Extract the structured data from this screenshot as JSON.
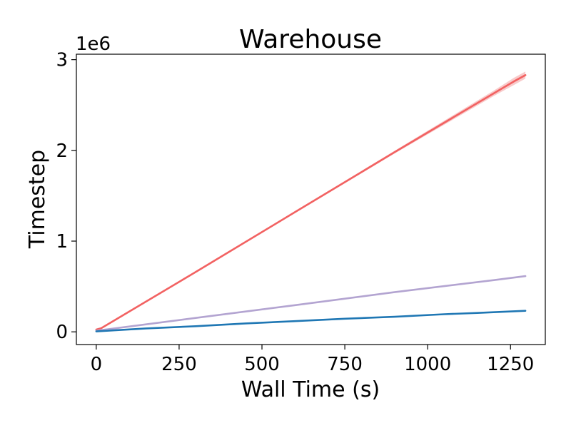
{
  "chart_data": {
    "type": "line",
    "title": "Warehouse",
    "xlabel": "Wall Time (s)",
    "ylabel": "Timestep",
    "offset_label": "1e6",
    "xlim": [
      -60,
      1355
    ],
    "ylim": [
      -0.14,
      3.06
    ],
    "xticks": [
      0,
      250,
      500,
      750,
      1000,
      1250
    ],
    "yticks": [
      0,
      1,
      2,
      3
    ],
    "grid": false,
    "legend": "none",
    "series": [
      {
        "color": "#f26262",
        "band_color": "#f4a8a8",
        "x": [
          0,
          15,
          300,
          600,
          900,
          1200,
          1260,
          1295
        ],
        "y": [
          0.025,
          0.04,
          0.66,
          1.32,
          1.98,
          2.63,
          2.76,
          2.83
        ],
        "band": [
          0.01,
          0.01,
          0.01,
          0.01,
          0.015,
          0.03,
          0.04,
          0.04
        ]
      },
      {
        "color": "#b3a4d1",
        "x": [
          0,
          300,
          600,
          900,
          1200,
          1295
        ],
        "y": [
          0.012,
          0.153,
          0.294,
          0.437,
          0.57,
          0.614
        ]
      },
      {
        "color": "#1f77b4",
        "x": [
          0,
          150,
          300,
          450,
          600,
          750,
          900,
          1050,
          1150,
          1295
        ],
        "y": [
          0.005,
          0.038,
          0.062,
          0.093,
          0.118,
          0.145,
          0.166,
          0.194,
          0.208,
          0.232
        ]
      }
    ]
  }
}
